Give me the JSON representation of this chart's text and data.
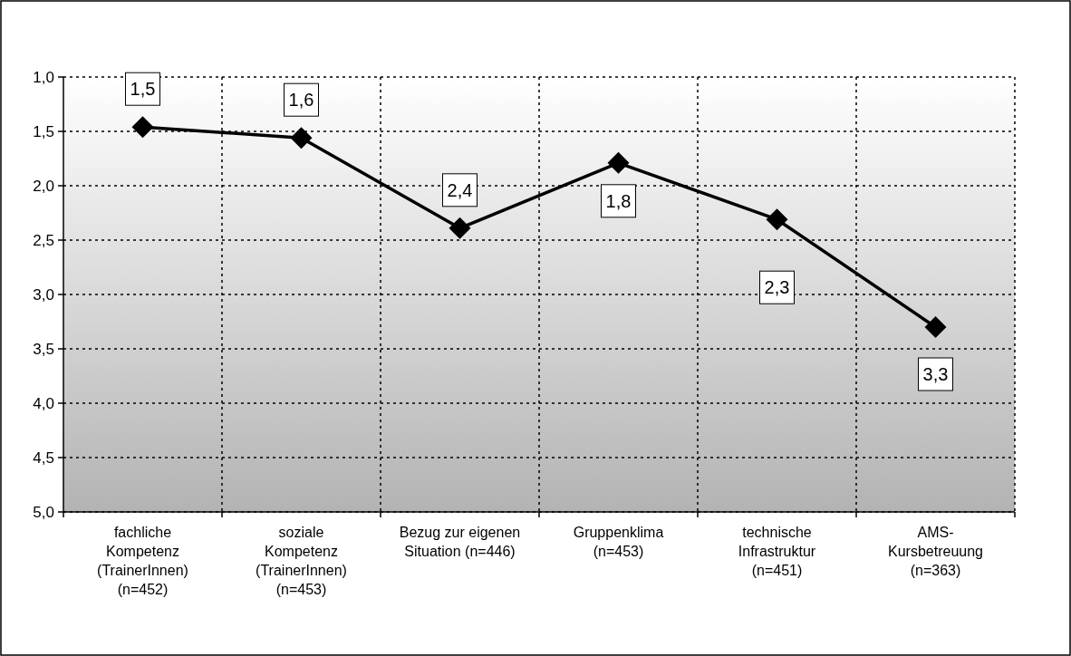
{
  "chart_data": {
    "type": "line",
    "categories": [
      "fachliche\nKompetenz\n(TrainerInnen)\n(n=452)",
      "soziale\nKompetenz\n(TrainerInnen)\n(n=453)",
      "Bezug zur eigenen\nSituation (n=446)",
      "Gruppenklima\n(n=453)",
      "technische\nInfrastruktur\n(n=451)",
      "AMS-\nKursbetreuung\n(n=363)"
    ],
    "series": [
      {
        "color": "#000000",
        "values": [
          1.46,
          1.56,
          2.39,
          1.79,
          2.31,
          3.3
        ],
        "value_labels": [
          "1,5",
          "1,6",
          "2,4",
          "1,8",
          "2,3",
          "3,3"
        ]
      }
    ],
    "ylim": [
      5,
      1
    ],
    "yticks": [
      {
        "value": 1,
        "label": "1,0"
      },
      {
        "value": 1.5,
        "label": "1,5"
      },
      {
        "value": 2,
        "label": "2,0"
      },
      {
        "value": 2.5,
        "label": "2,5"
      },
      {
        "value": 3,
        "label": "3,0"
      },
      {
        "value": 3.5,
        "label": "3,5"
      },
      {
        "value": 4,
        "label": "4,0"
      },
      {
        "value": 4.5,
        "label": "4,5"
      },
      {
        "value": 5,
        "label": "5,0"
      }
    ],
    "grid": true,
    "marker": "diamond",
    "line_style": "solid"
  }
}
